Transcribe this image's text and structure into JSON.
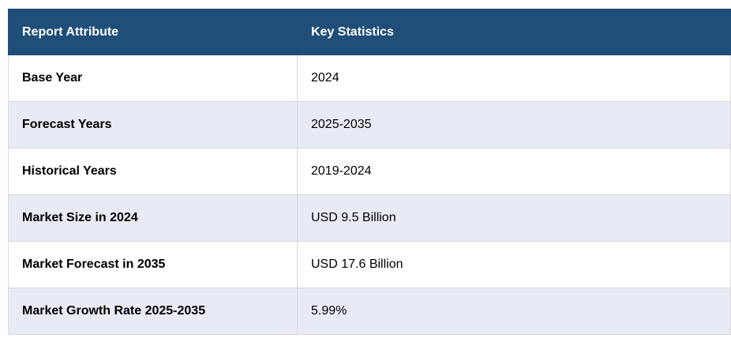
{
  "table": {
    "headers": [
      "Report Attribute",
      "Key Statistics"
    ],
    "rows": [
      {
        "attribute": "Base Year",
        "value": "2024"
      },
      {
        "attribute": "Forecast Years",
        "value": "2025-2035"
      },
      {
        "attribute": "Historical Years",
        "value": "2019-2024"
      },
      {
        "attribute": "Market Size in 2024",
        "value": "USD 9.5 Billion"
      },
      {
        "attribute": "Market Forecast in 2035",
        "value": "USD 17.6 Billion"
      },
      {
        "attribute": "Market Growth Rate 2025-2035",
        "value": "5.99%"
      }
    ]
  },
  "colors": {
    "header_bg": "#1f4e79",
    "header_text": "#ffffff",
    "row_alt_bg": "#e8eaf5",
    "row_bg": "#ffffff"
  }
}
